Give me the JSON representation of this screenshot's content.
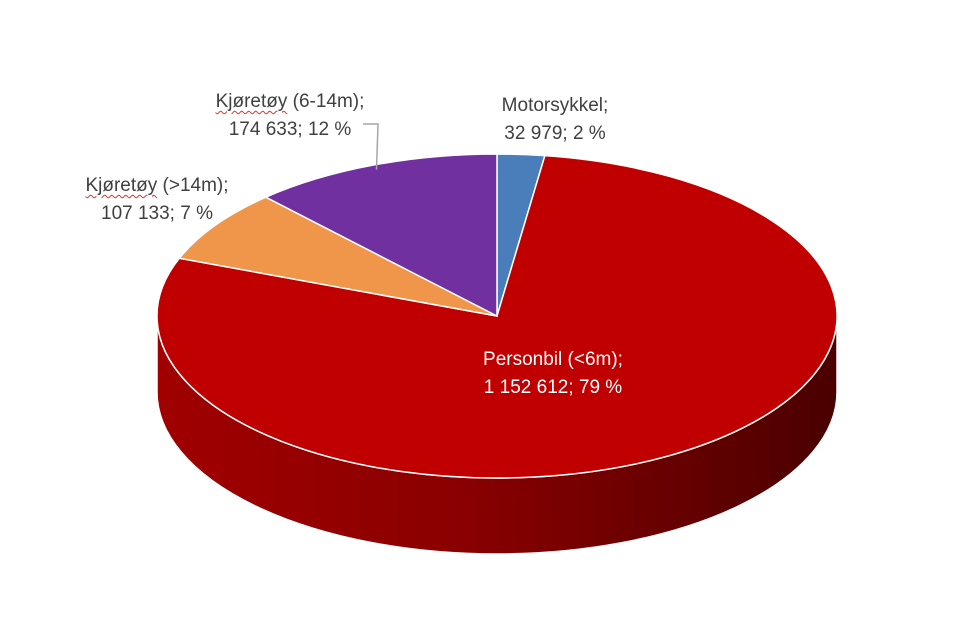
{
  "chart_data": {
    "type": "pie",
    "title": "",
    "slices": [
      {
        "name": "Motorsykkel",
        "value": 32979,
        "value_label": "32 979",
        "percent_label": "2 %",
        "color": "#4a7ebb"
      },
      {
        "name": "Personbil (<6m)",
        "value": 1152612,
        "value_label": "1 152 612",
        "percent_label": "79 %",
        "color": "#c00000"
      },
      {
        "name": "Kjøretøy (>14m)",
        "value": 107133,
        "value_label": "107 133",
        "percent_label": "7 %",
        "color": "#f0964a"
      },
      {
        "name": "Kjøretøy (6-14m)",
        "value": 174633,
        "value_label": "174 633",
        "percent_label": "12 %",
        "color": "#7030a0"
      }
    ],
    "legend": "none"
  },
  "labels": {
    "motorsykkel": {
      "name": "Motorsykkel;",
      "line2": "32 979; 2 %"
    },
    "personbil": {
      "name": "Personbil (<6m);",
      "line2": "1 152 612; 79 %"
    },
    "kjoretoy_gt14": {
      "word": "Kjøretøy",
      "rest": " (>14m);",
      "line2": "107 133; 7 %"
    },
    "kjoretoy_6_14": {
      "word": "Kjøretøy",
      "rest": " (6-14m);",
      "line2": "174 633; 12 %"
    }
  }
}
